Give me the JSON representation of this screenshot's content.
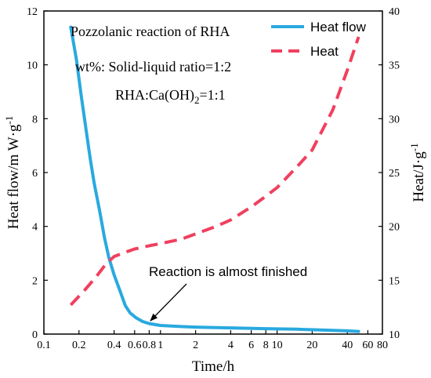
{
  "chart_data": {
    "type": "line",
    "x_scale": "log",
    "xlabel": "Time/h",
    "ylabel_left": "Heat flow/m W·g",
    "ylabel_left_sup": "-1",
    "ylabel_right": "Heat/J·g",
    "ylabel_right_sup": "-1",
    "xlim": [
      0.1,
      80
    ],
    "ylim_left": [
      0,
      12
    ],
    "ylim_right": [
      10,
      40
    ],
    "x_ticks": [
      {
        "v": 0.1,
        "t": "0.1"
      },
      {
        "v": 0.2,
        "t": "0.2"
      },
      {
        "v": 0.4,
        "t": "0.4"
      },
      {
        "v": 0.6,
        "t": "0.6"
      },
      {
        "v": 0.8,
        "t": "0.8"
      },
      {
        "v": 1,
        "t": "1"
      },
      {
        "v": 2,
        "t": "2"
      },
      {
        "v": 4,
        "t": "4"
      },
      {
        "v": 6,
        "t": "6"
      },
      {
        "v": 8,
        "t": "8"
      },
      {
        "v": 10,
        "t": "10"
      },
      {
        "v": 20,
        "t": "20"
      },
      {
        "v": 40,
        "t": "40"
      },
      {
        "v": 60,
        "t": "60"
      },
      {
        "v": 80,
        "t": "80"
      }
    ],
    "y_left_ticks": [
      0,
      2,
      4,
      6,
      8,
      10,
      12
    ],
    "y_right_ticks": [
      10,
      15,
      20,
      25,
      30,
      35,
      40
    ],
    "series": [
      {
        "name": "Heat flow",
        "axis": "left",
        "color": "#29a9df",
        "dash": "solid",
        "points": [
          [
            0.17,
            11.4
          ],
          [
            0.19,
            10.2
          ],
          [
            0.21,
            8.8
          ],
          [
            0.23,
            7.6
          ],
          [
            0.25,
            6.5
          ],
          [
            0.27,
            5.6
          ],
          [
            0.3,
            4.6
          ],
          [
            0.33,
            3.6
          ],
          [
            0.36,
            2.85
          ],
          [
            0.4,
            2.2
          ],
          [
            0.45,
            1.6
          ],
          [
            0.5,
            1.05
          ],
          [
            0.55,
            0.78
          ],
          [
            0.62,
            0.6
          ],
          [
            0.7,
            0.47
          ],
          [
            0.8,
            0.39
          ],
          [
            1.0,
            0.32
          ],
          [
            1.5,
            0.28
          ],
          [
            2,
            0.26
          ],
          [
            4,
            0.23
          ],
          [
            8,
            0.2
          ],
          [
            15,
            0.18
          ],
          [
            25,
            0.15
          ],
          [
            40,
            0.12
          ],
          [
            50,
            0.1
          ]
        ]
      },
      {
        "name": "Heat",
        "axis": "right",
        "color": "#f0405e",
        "dash": "dashed",
        "points": [
          [
            0.17,
            12.7
          ],
          [
            0.22,
            14.0
          ],
          [
            0.28,
            15.3
          ],
          [
            0.34,
            16.5
          ],
          [
            0.4,
            17.2
          ],
          [
            0.5,
            17.6
          ],
          [
            0.6,
            17.9
          ],
          [
            0.8,
            18.2
          ],
          [
            1.0,
            18.4
          ],
          [
            1.5,
            18.8
          ],
          [
            2,
            19.3
          ],
          [
            3,
            20.0
          ],
          [
            4,
            20.6
          ],
          [
            6,
            21.8
          ],
          [
            8,
            22.8
          ],
          [
            10,
            23.6
          ],
          [
            15,
            25.6
          ],
          [
            20,
            27.1
          ],
          [
            30,
            30.8
          ],
          [
            40,
            34.5
          ],
          [
            50,
            37.6
          ]
        ]
      }
    ],
    "legend_position": "top-right",
    "annotations": {
      "title": "Pozzolanic reaction of RHA",
      "ratio_line": "wt%: Solid-liquid ratio=1:2",
      "ca_prefix": "RHA:Ca(OH)",
      "ca_sub": "2",
      "ca_suffix": "=1:1",
      "arrow_text": "Reaction is almost finished",
      "arrow_target": [
        0.75,
        0.42
      ]
    }
  }
}
